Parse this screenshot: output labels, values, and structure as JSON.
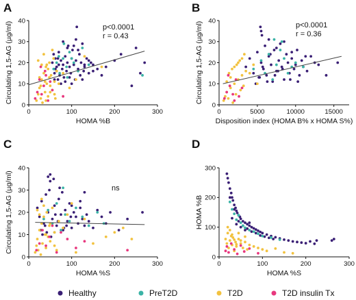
{
  "legend": [
    {
      "name": "Healthy",
      "color": "#3a1f75"
    },
    {
      "name": "PreT2D",
      "color": "#3bb3a6"
    },
    {
      "name": "T2D",
      "color": "#f2c240"
    },
    {
      "name": "T2D insulin Tx",
      "color": "#e8387e"
    }
  ],
  "chart_data": [
    {
      "panel": "A",
      "type": "scatter",
      "xlabel": "HOMA %B",
      "ylabel": "Circulating 1,5-AG (µg/ml)",
      "xlim": [
        0,
        300
      ],
      "ylim": [
        0,
        40
      ],
      "xticks": [
        0,
        100,
        200,
        300
      ],
      "yticks": [
        0,
        10,
        20,
        30,
        40
      ],
      "annotations": [
        "p<0.0001",
        "r = 0.43"
      ],
      "fit_line": {
        "x": [
          0,
          270
        ],
        "y": [
          9.5,
          25.5
        ]
      },
      "series": [
        {
          "name": "Healthy",
          "x": [
            55,
            60,
            62,
            65,
            68,
            70,
            72,
            75,
            78,
            80,
            82,
            85,
            88,
            90,
            92,
            95,
            98,
            100,
            102,
            105,
            108,
            110,
            112,
            115,
            118,
            120,
            122,
            125,
            128,
            130,
            135,
            140,
            145,
            150,
            160,
            170,
            180,
            200,
            215,
            240,
            250,
            260,
            270,
            110,
            115,
            125,
            75,
            85,
            95,
            65,
            70,
            58,
            62,
            100,
            105,
            90,
            80,
            130,
            140,
            150,
            60,
            68
          ],
          "y": [
            20,
            15,
            22,
            18,
            12,
            25,
            14,
            21,
            17,
            19,
            13,
            23,
            16,
            20,
            28,
            18,
            15,
            22,
            26,
            19,
            12,
            21,
            37,
            17,
            24,
            14,
            20,
            29,
            16,
            18,
            22,
            15,
            20,
            19,
            17,
            14,
            18,
            21,
            24,
            9,
            27,
            15,
            20,
            31,
            26,
            12,
            10,
            11,
            13,
            16,
            19,
            24,
            17,
            10,
            28,
            27,
            30,
            19,
            21,
            16,
            12,
            22
          ]
        },
        {
          "name": "PreT2D",
          "x": [
            58,
            65,
            72,
            80,
            88,
            95,
            105,
            115,
            125,
            140,
            70,
            90,
            100,
            82,
            265
          ],
          "y": [
            17,
            20,
            15,
            22,
            18,
            25,
            20,
            16,
            27,
            19,
            23,
            13,
            22,
            29,
            14
          ]
        },
        {
          "name": "T2D",
          "x": [
            18,
            22,
            25,
            28,
            30,
            32,
            35,
            38,
            40,
            42,
            45,
            48,
            50,
            52,
            55,
            58,
            60,
            62,
            65,
            25,
            30,
            35,
            40,
            45,
            50,
            28,
            38,
            48,
            22,
            55,
            70,
            80,
            95,
            110,
            130,
            170,
            60,
            42
          ],
          "y": [
            2,
            5,
            8,
            3,
            12,
            1,
            15,
            6,
            18,
            10,
            4,
            20,
            9,
            14,
            7,
            22,
            11,
            3,
            16,
            13,
            19,
            24,
            2,
            17,
            6,
            9,
            11,
            13,
            21,
            26,
            10,
            15,
            8,
            12,
            23,
            18,
            5,
            19
          ]
        },
        {
          "name": "T2D insulin Tx",
          "x": [
            15,
            20,
            25,
            30,
            35,
            40,
            45,
            50,
            28,
            38,
            55,
            80
          ],
          "y": [
            3,
            6,
            12,
            5,
            9,
            14,
            2,
            11,
            18,
            16,
            7,
            4
          ]
        }
      ]
    },
    {
      "panel": "B",
      "type": "scatter",
      "xlabel": "Disposition index (HOMA B% x HOMA S%)",
      "ylabel": "Circulating 1,5-AG (µg/ml)",
      "xlim": [
        0,
        17000
      ],
      "ylim": [
        0,
        40
      ],
      "xticks": [
        0,
        5000,
        10000,
        15000
      ],
      "yticks": [
        0,
        10,
        20,
        30,
        40
      ],
      "annotations": [
        "p<0.0001",
        "r = 0.36"
      ],
      "fit_line": {
        "x": [
          500,
          16000
        ],
        "y": [
          10,
          23
        ]
      },
      "series": [
        {
          "name": "Healthy",
          "x": [
            3500,
            4000,
            4500,
            5000,
            5200,
            5500,
            5800,
            6000,
            6200,
            6500,
            6800,
            7000,
            7200,
            7500,
            7800,
            8000,
            8200,
            8500,
            8800,
            9000,
            9200,
            9500,
            9800,
            10000,
            10200,
            10500,
            10800,
            11000,
            11500,
            12000,
            12500,
            13000,
            14000,
            15500,
            5500,
            6500,
            7500,
            8500,
            9500,
            4800,
            5300,
            6300,
            7300,
            8300,
            9300,
            10300,
            11300,
            5700,
            6700,
            7700,
            5400,
            5600
          ],
          "y": [
            18,
            22,
            15,
            25,
            13,
            20,
            17,
            28,
            14,
            23,
            19,
            11,
            26,
            16,
            21,
            29,
            18,
            12,
            24,
            20,
            15,
            22,
            17,
            19,
            26,
            14,
            21,
            18,
            16,
            23,
            20,
            19,
            14,
            20,
            35,
            31,
            27,
            30,
            25,
            10,
            13,
            11,
            14,
            17,
            12,
            11,
            23,
            18,
            24,
            16,
            37,
            33
          ]
        },
        {
          "name": "PreT2D",
          "x": [
            4500,
            5500,
            6000,
            6500,
            7000,
            7500,
            8000,
            8500,
            9000,
            9500,
            10000,
            11000,
            7200,
            8200
          ],
          "y": [
            17,
            21,
            15,
            24,
            12,
            19,
            26,
            22,
            15,
            18,
            20,
            18,
            31,
            30
          ]
        },
        {
          "name": "T2D",
          "x": [
            600,
            800,
            1000,
            1200,
            1500,
            1800,
            2000,
            2200,
            2500,
            2800,
            3000,
            3200,
            3500,
            1000,
            1500,
            2000,
            2500,
            3000,
            4000,
            4500,
            5000,
            1300,
            1700,
            2300,
            2700,
            3300
          ],
          "y": [
            2,
            4,
            6,
            3,
            8,
            1,
            10,
            5,
            12,
            7,
            14,
            9,
            16,
            11,
            13,
            18,
            20,
            22,
            15,
            19,
            10,
            15,
            17,
            19,
            21,
            24
          ]
        },
        {
          "name": "T2D insulin Tx",
          "x": [
            700,
            1000,
            1400,
            1800,
            2200,
            2600,
            3000,
            1200,
            2000
          ],
          "y": [
            3,
            6,
            9,
            5,
            12,
            4,
            8,
            14,
            2
          ]
        }
      ]
    },
    {
      "panel": "C",
      "type": "scatter",
      "xlabel": "HOMA %S",
      "ylabel": "Circulating 1,5-AG (µg/ml)",
      "xlim": [
        0,
        300
      ],
      "ylim": [
        0,
        40
      ],
      "xticks": [
        0,
        100,
        200,
        300
      ],
      "yticks": [
        0,
        10,
        20,
        30,
        40
      ],
      "annotations": [
        "ns"
      ],
      "fit_line": {
        "x": [
          15,
          270
        ],
        "y": [
          15.5,
          14.5
        ]
      },
      "series": [
        {
          "name": "Healthy",
          "x": [
            20,
            25,
            30,
            35,
            40,
            45,
            50,
            55,
            60,
            65,
            70,
            75,
            80,
            85,
            90,
            95,
            100,
            105,
            110,
            115,
            120,
            125,
            130,
            135,
            140,
            150,
            160,
            170,
            180,
            190,
            210,
            230,
            265,
            28,
            38,
            48,
            58,
            68,
            78,
            88,
            98,
            32,
            42,
            52,
            62,
            72,
            82,
            45,
            50,
            120,
            130,
            100
          ],
          "y": [
            22,
            18,
            25,
            15,
            28,
            20,
            37,
            17,
            23,
            14,
            26,
            19,
            12,
            21,
            16,
            24,
            13,
            20,
            18,
            15,
            22,
            17,
            14,
            19,
            16,
            13,
            21,
            18,
            15,
            20,
            12,
            17,
            20,
            12,
            14,
            30,
            35,
            16,
            29,
            14,
            18,
            10,
            11,
            9,
            19,
            31,
            13,
            36,
            34,
            25,
            29,
            23
          ]
        },
        {
          "name": "PreT2D",
          "x": [
            35,
            45,
            55,
            65,
            75,
            85,
            95,
            110,
            125,
            140,
            160,
            175,
            60,
            80
          ],
          "y": [
            17,
            21,
            15,
            24,
            12,
            19,
            16,
            22,
            18,
            14,
            20,
            15,
            11,
            31
          ]
        },
        {
          "name": "T2D",
          "x": [
            15,
            18,
            20,
            22,
            25,
            28,
            30,
            32,
            35,
            38,
            40,
            42,
            45,
            48,
            50,
            55,
            60,
            65,
            70,
            80,
            90,
            100,
            110,
            130,
            150,
            180,
            200,
            220,
            240,
            20,
            30,
            40,
            50,
            60,
            25,
            35
          ],
          "y": [
            2,
            5,
            8,
            3,
            12,
            1,
            15,
            6,
            18,
            10,
            4,
            20,
            9,
            14,
            7,
            22,
            11,
            3,
            16,
            13,
            19,
            24,
            2,
            17,
            6,
            9,
            11,
            13,
            8,
            21,
            26,
            10,
            15,
            5,
            19,
            23
          ]
        },
        {
          "name": "T2D insulin Tx",
          "x": [
            18,
            25,
            32,
            40,
            48,
            55,
            65,
            75,
            90,
            110,
            130,
            230
          ],
          "y": [
            3,
            6,
            12,
            5,
            9,
            14,
            2,
            11,
            8,
            4,
            7,
            3
          ]
        }
      ]
    },
    {
      "panel": "D",
      "type": "scatter",
      "xlabel": "HOMA %S",
      "ylabel": "HOMA %B",
      "xlim": [
        0,
        300
      ],
      "ylim": [
        0,
        300
      ],
      "xticks": [
        0,
        100,
        200,
        300
      ],
      "yticks": [
        0,
        100,
        200,
        300
      ],
      "annotations": [],
      "series": [
        {
          "name": "Healthy",
          "x": [
            18,
            20,
            22,
            25,
            28,
            30,
            32,
            35,
            38,
            40,
            42,
            45,
            48,
            50,
            55,
            60,
            65,
            70,
            75,
            80,
            85,
            90,
            95,
            100,
            110,
            120,
            130,
            140,
            150,
            160,
            170,
            180,
            190,
            200,
            210,
            220,
            225,
            260,
            265,
            25,
            35,
            45,
            55,
            65,
            75,
            85,
            95,
            105,
            115,
            125,
            30,
            40,
            50,
            60,
            70
          ],
          "y": [
            280,
            265,
            250,
            230,
            215,
            200,
            190,
            175,
            165,
            155,
            148,
            140,
            135,
            128,
            120,
            115,
            110,
            105,
            100,
            96,
            92,
            88,
            84,
            80,
            75,
            70,
            66,
            62,
            58,
            55,
            52,
            50,
            48,
            46,
            52,
            44,
            55,
            55,
            60,
            200,
            160,
            120,
            105,
            95,
            85,
            80,
            72,
            68,
            64,
            60,
            130,
            110,
            100,
            90,
            115
          ]
        },
        {
          "name": "PreT2D",
          "x": [
            25,
            30,
            35,
            40,
            45,
            50,
            55,
            60,
            70,
            80,
            90,
            100,
            120,
            140
          ],
          "y": [
            185,
            160,
            145,
            125,
            140,
            115,
            105,
            98,
            90,
            85,
            78,
            70,
            65,
            58
          ]
        },
        {
          "name": "T2D",
          "x": [
            15,
            18,
            20,
            22,
            25,
            28,
            30,
            32,
            35,
            38,
            40,
            45,
            50,
            55,
            60,
            65,
            70,
            80,
            90,
            100,
            110,
            130,
            150,
            170,
            20,
            25,
            30,
            35,
            40,
            45,
            50,
            60
          ],
          "y": [
            60,
            45,
            80,
            30,
            55,
            70,
            40,
            65,
            20,
            50,
            35,
            60,
            45,
            30,
            50,
            25,
            40,
            35,
            30,
            25,
            20,
            28,
            15,
            12,
            100,
            90,
            75,
            58,
            42,
            80,
            55,
            68
          ]
        },
        {
          "name": "T2D insulin Tx",
          "x": [
            15,
            18,
            22,
            28,
            35,
            42,
            50,
            58,
            70,
            90
          ],
          "y": [
            20,
            35,
            15,
            45,
            25,
            10,
            38,
            18,
            28,
            12
          ]
        }
      ]
    }
  ]
}
